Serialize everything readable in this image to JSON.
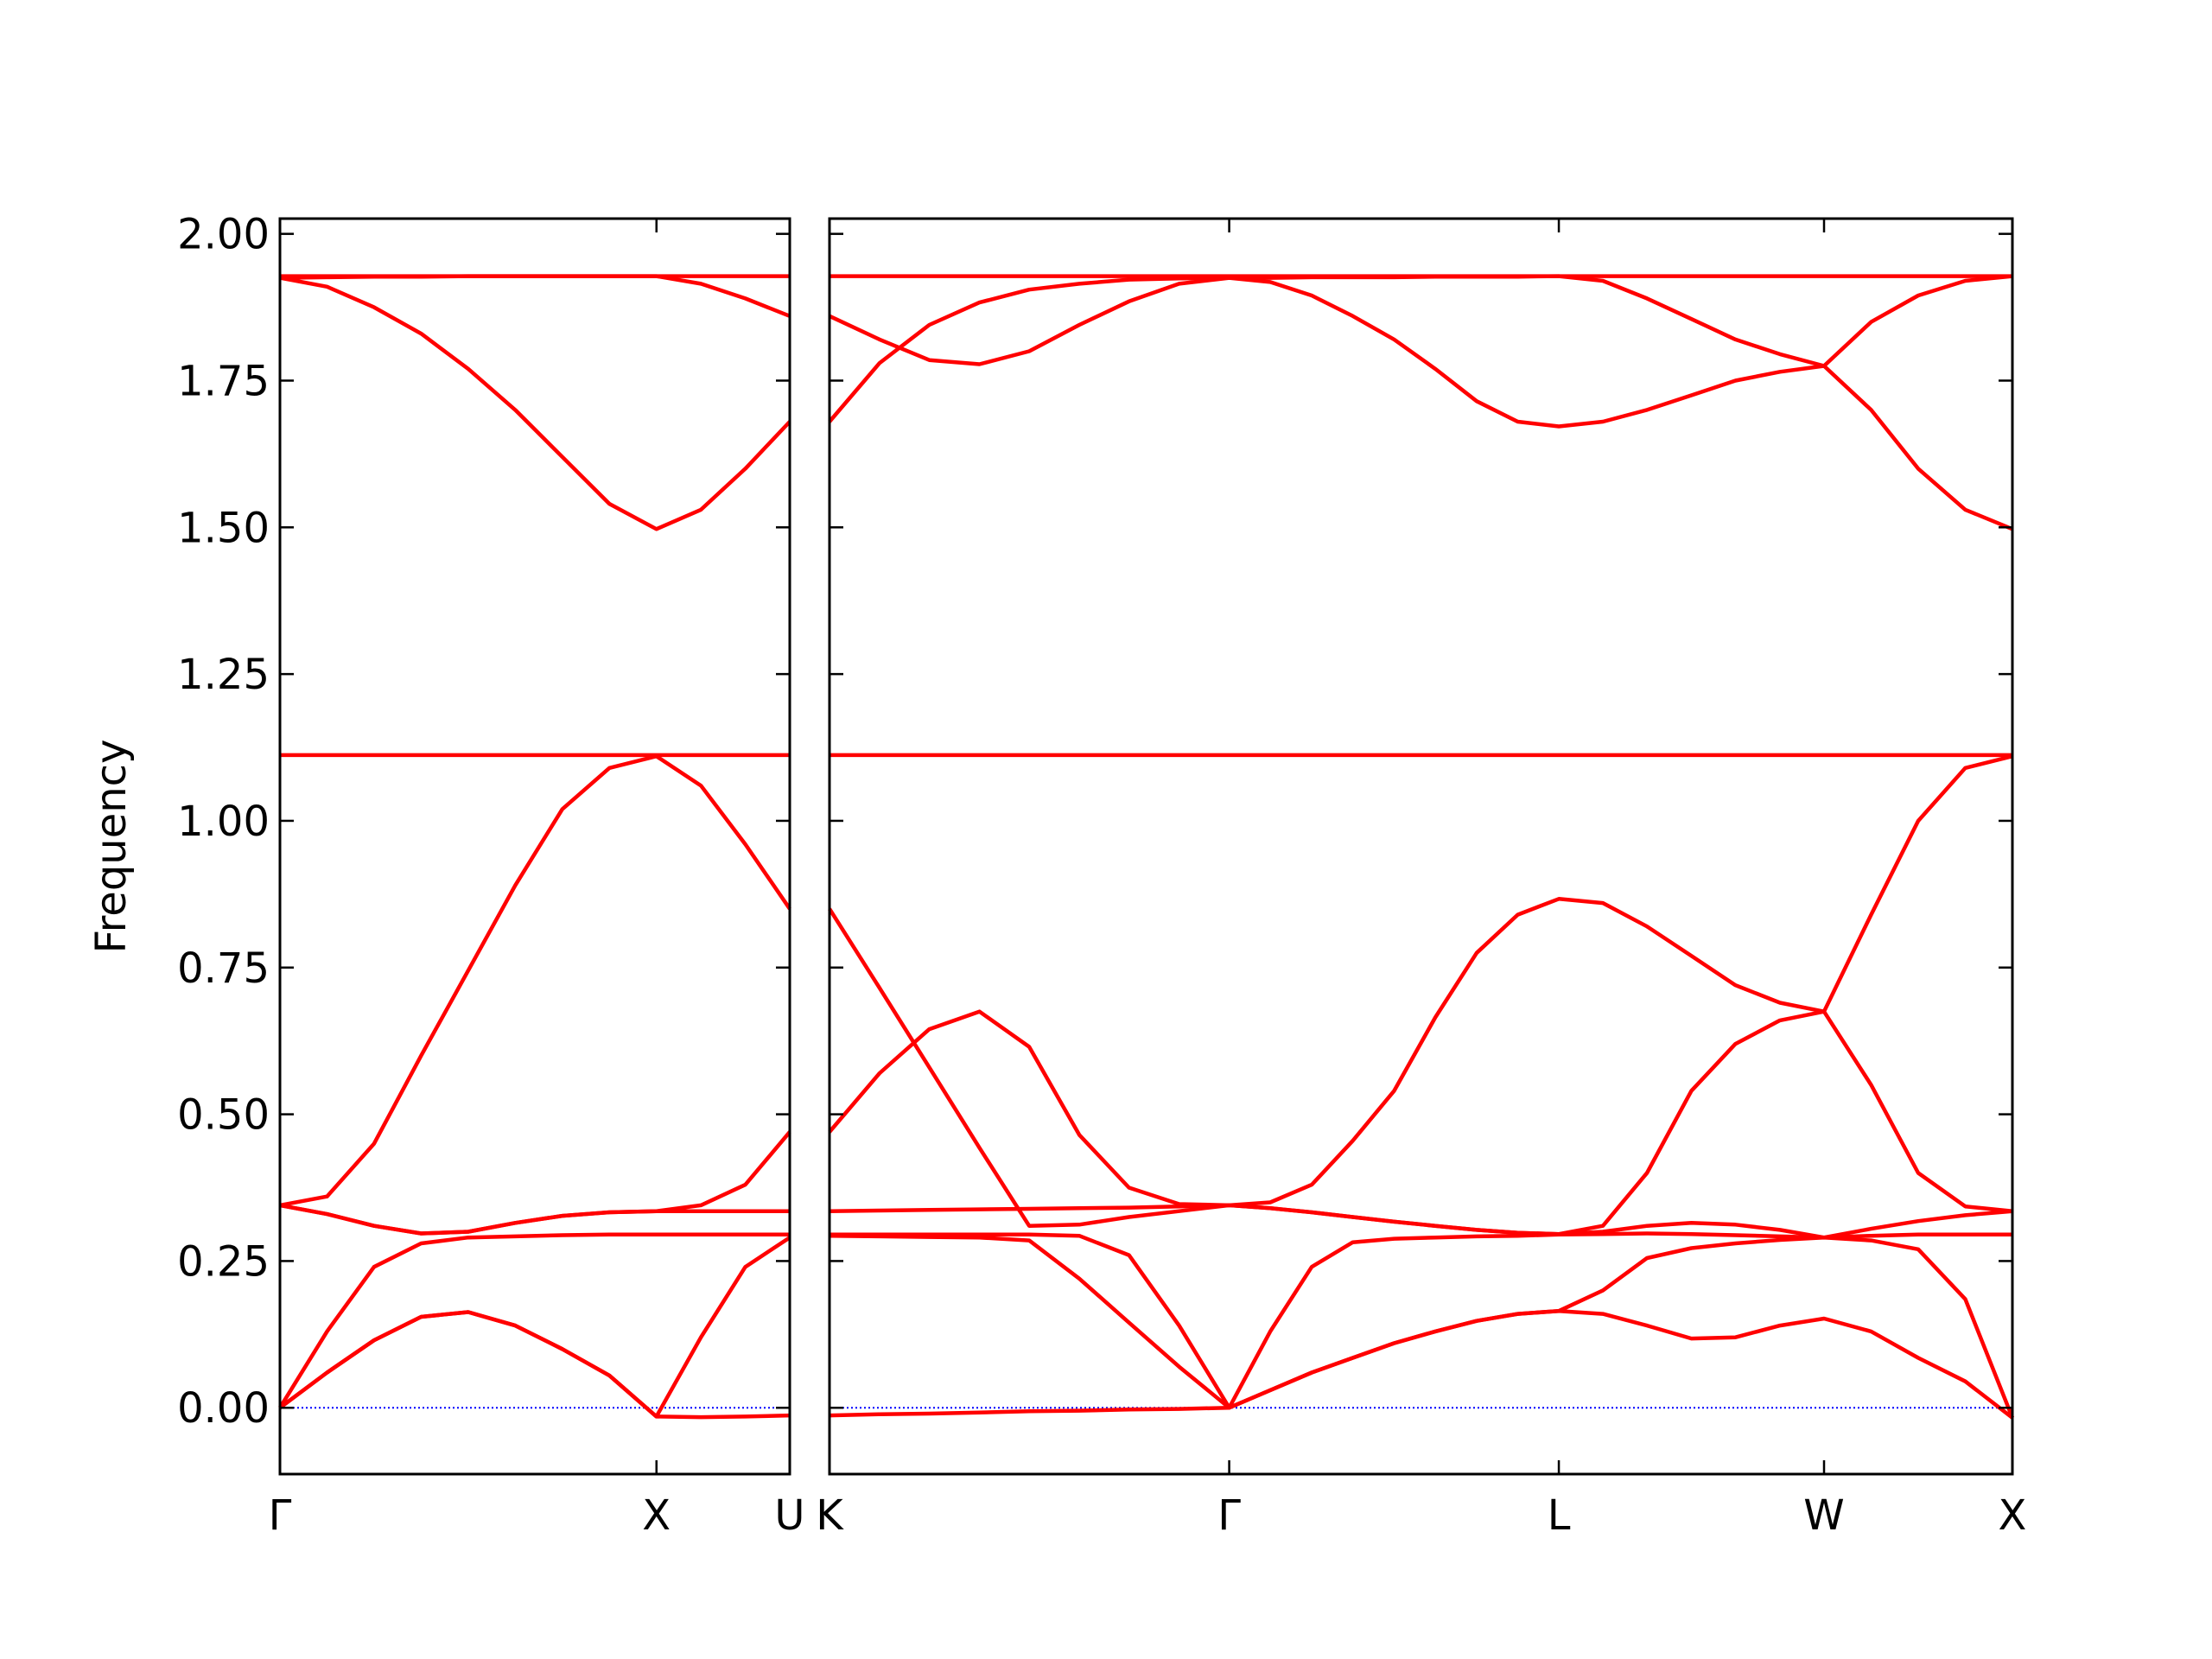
{
  "chart_data": [
    {
      "type": "line",
      "ylabel": "Frequency",
      "color": "#ff0000",
      "line_width": 3,
      "x": [
        0,
        0.125,
        0.25,
        0.375,
        0.5,
        0.625,
        0.75,
        0.875,
        1,
        1.118,
        1.236,
        1.354
      ],
      "xlim": [
        0,
        1.354
      ],
      "xticks": [
        {
          "value": 0,
          "label": "Γ"
        },
        {
          "value": 1,
          "label": "X"
        },
        {
          "value": 1.354,
          "label": "U"
        }
      ],
      "ylim": [
        -0.113,
        2.026
      ],
      "yticks": [
        {
          "value": 0,
          "label": "0.00"
        },
        {
          "value": 0.25,
          "label": "0.25"
        },
        {
          "value": 0.5,
          "label": "0.50"
        },
        {
          "value": 0.75,
          "label": "0.75"
        },
        {
          "value": 1,
          "label": "1.00"
        },
        {
          "value": 1.25,
          "label": "1.25"
        },
        {
          "value": 1.5,
          "label": "1.50"
        },
        {
          "value": 1.75,
          "label": "1.75"
        },
        {
          "value": 2,
          "label": "2.00"
        }
      ],
      "hline": {
        "y": 0,
        "color": "#0000ff",
        "style": "dotted"
      },
      "series": [
        {
          "values": [
            0,
            0.06,
            0.115,
            0.155,
            0.163,
            0.14,
            0.1,
            0.055,
            -0.015,
            -0.016,
            -0.015,
            -0.013
          ]
        },
        {
          "values": [
            0,
            0.13,
            0.24,
            0.28,
            0.29,
            0.292,
            0.294,
            0.295,
            0.295,
            0.295,
            0.295,
            0.295
          ]
        },
        {
          "values": [
            0,
            0.06,
            0.115,
            0.155,
            0.163,
            0.14,
            0.1,
            0.055,
            -0.015,
            0.12,
            0.24,
            0.29
          ]
        },
        {
          "values": [
            0.345,
            0.33,
            0.31,
            0.297,
            0.3,
            0.315,
            0.327,
            0.333,
            0.335,
            0.335,
            0.335,
            0.335
          ]
        },
        {
          "values": [
            0.345,
            0.33,
            0.31,
            0.297,
            0.3,
            0.315,
            0.327,
            0.333,
            0.335,
            0.345,
            0.38,
            0.47
          ]
        },
        {
          "values": [
            0.345,
            0.36,
            0.45,
            0.6,
            0.745,
            0.89,
            1.02,
            1.09,
            1.11,
            1.06,
            0.96,
            0.85
          ]
        },
        {
          "values": [
            1.112,
            1.112,
            1.112,
            1.112,
            1.112,
            1.112,
            1.112,
            1.112,
            1.112,
            1.112,
            1.112,
            1.112
          ]
        },
        {
          "values": [
            1.925,
            1.91,
            1.875,
            1.83,
            1.77,
            1.7,
            1.62,
            1.54,
            1.497,
            1.53,
            1.6,
            1.68
          ]
        },
        {
          "values": [
            1.925,
            1.926,
            1.927,
            1.927,
            1.928,
            1.928,
            1.928,
            1.928,
            1.928,
            1.915,
            1.89,
            1.86
          ]
        },
        {
          "values": [
            1.928,
            1.928,
            1.928,
            1.928,
            1.928,
            1.928,
            1.928,
            1.928,
            1.928,
            1.928,
            1.928,
            1.928
          ]
        }
      ]
    },
    {
      "type": "line",
      "sharey": true,
      "color": "#ff0000",
      "line_width": 3,
      "x": [
        0,
        0.133,
        0.265,
        0.398,
        0.53,
        0.663,
        0.795,
        0.928,
        1.061,
        1.17,
        1.28,
        1.389,
        1.499,
        1.608,
        1.718,
        1.827,
        1.936,
        2.053,
        2.17,
        2.288,
        2.405,
        2.523,
        2.64,
        2.765,
        2.89,
        3.015,
        3.14
      ],
      "xlim": [
        0,
        3.14
      ],
      "xticks": [
        {
          "value": 0,
          "label": "K"
        },
        {
          "value": 1.061,
          "label": "Γ"
        },
        {
          "value": 1.936,
          "label": "L"
        },
        {
          "value": 2.64,
          "label": "W"
        },
        {
          "value": 3.14,
          "label": "X"
        }
      ],
      "hline": {
        "y": 0,
        "color": "#0000ff",
        "style": "dotted"
      },
      "series": [
        {
          "values": [
            -0.013,
            -0.011,
            -0.01,
            -0.008,
            -0.006,
            -0.005,
            -0.003,
            -0.002,
            0,
            0.03,
            0.06,
            0.085,
            0.11,
            0.13,
            0.148,
            0.16,
            0.165,
            0.16,
            0.14,
            0.118,
            0.12,
            0.14,
            0.152,
            0.13,
            0.085,
            0.045,
            -0.017
          ]
        },
        {
          "values": [
            0.293,
            0.292,
            0.291,
            0.29,
            0.285,
            0.22,
            0.145,
            0.07,
            0,
            0.13,
            0.24,
            0.282,
            0.288,
            0.29,
            0.292,
            0.293,
            0.295,
            0.296,
            0.297,
            0.296,
            0.294,
            0.292,
            0.29,
            0.293,
            0.295,
            0.295,
            0.295
          ]
        },
        {
          "values": [
            0.295,
            0.295,
            0.295,
            0.295,
            0.295,
            0.293,
            0.26,
            0.14,
            0,
            0.03,
            0.06,
            0.085,
            0.11,
            0.13,
            0.148,
            0.16,
            0.165,
            0.2,
            0.255,
            0.272,
            0.28,
            0.286,
            0.29,
            0.285,
            0.27,
            0.185,
            -0.017
          ]
        },
        {
          "values": [
            0.335,
            0.336,
            0.337,
            0.338,
            0.339,
            0.34,
            0.341,
            0.343,
            0.345,
            0.34,
            0.333,
            0.325,
            0.317,
            0.31,
            0.303,
            0.298,
            0.296,
            0.3,
            0.31,
            0.315,
            0.312,
            0.303,
            0.29,
            0.305,
            0.318,
            0.328,
            0.335
          ]
        },
        {
          "values": [
            0.47,
            0.57,
            0.645,
            0.675,
            0.615,
            0.465,
            0.375,
            0.347,
            0.345,
            0.35,
            0.38,
            0.455,
            0.54,
            0.665,
            0.775,
            0.84,
            0.867,
            0.86,
            0.82,
            0.77,
            0.72,
            0.69,
            0.675,
            0.84,
            1.0,
            1.09,
            1.11
          ]
        },
        {
          "values": [
            0.85,
            0.715,
            0.58,
            0.443,
            0.31,
            0.312,
            0.325,
            0.335,
            0.345,
            0.34,
            0.333,
            0.325,
            0.317,
            0.31,
            0.303,
            0.298,
            0.296,
            0.31,
            0.4,
            0.54,
            0.62,
            0.66,
            0.675,
            0.55,
            0.4,
            0.343,
            0.335
          ]
        },
        {
          "values": [
            1.112,
            1.112,
            1.112,
            1.112,
            1.112,
            1.112,
            1.112,
            1.112,
            1.112,
            1.112,
            1.112,
            1.112,
            1.112,
            1.112,
            1.112,
            1.112,
            1.112,
            1.112,
            1.112,
            1.112,
            1.112,
            1.112,
            1.112,
            1.112,
            1.112,
            1.112,
            1.112
          ]
        },
        {
          "values": [
            1.68,
            1.78,
            1.845,
            1.883,
            1.905,
            1.915,
            1.922,
            1.924,
            1.925,
            1.918,
            1.895,
            1.86,
            1.82,
            1.77,
            1.715,
            1.68,
            1.672,
            1.68,
            1.7,
            1.725,
            1.75,
            1.765,
            1.775,
            1.7,
            1.6,
            1.53,
            1.497
          ]
        },
        {
          "values": [
            1.86,
            1.82,
            1.785,
            1.778,
            1.8,
            1.845,
            1.885,
            1.915,
            1.925,
            1.925,
            1.926,
            1.926,
            1.926,
            1.927,
            1.927,
            1.927,
            1.928,
            1.92,
            1.89,
            1.855,
            1.82,
            1.795,
            1.775,
            1.85,
            1.895,
            1.92,
            1.928
          ]
        },
        {
          "values": [
            1.928,
            1.928,
            1.928,
            1.928,
            1.928,
            1.928,
            1.928,
            1.928,
            1.928,
            1.928,
            1.928,
            1.928,
            1.928,
            1.928,
            1.928,
            1.928,
            1.928,
            1.928,
            1.928,
            1.928,
            1.928,
            1.928,
            1.928,
            1.928,
            1.928,
            1.928,
            1.928
          ]
        }
      ]
    }
  ]
}
